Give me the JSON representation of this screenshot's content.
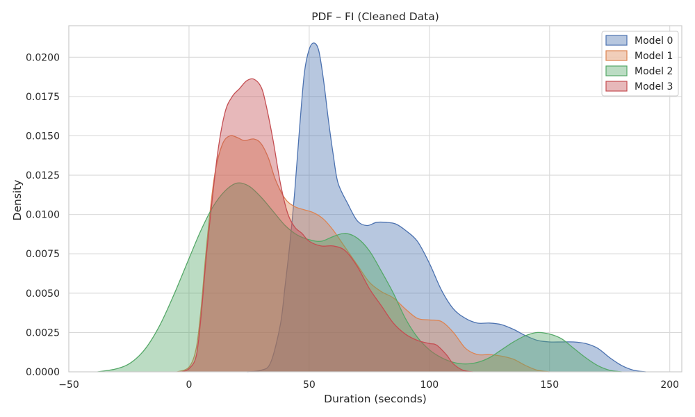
{
  "chart_data": {
    "type": "area",
    "title": "PDF – FI (Cleaned Data)",
    "xlabel": "Duration (seconds)",
    "ylabel": "Density",
    "xlim": [
      -50,
      205
    ],
    "ylim": [
      0,
      0.022
    ],
    "xticks": [
      -50,
      0,
      50,
      100,
      150,
      200
    ],
    "xtick_labels": [
      "−50",
      "0",
      "50",
      "100",
      "150",
      "200"
    ],
    "yticks": [
      0,
      0.0025,
      0.005,
      0.0075,
      0.01,
      0.0125,
      0.015,
      0.0175,
      0.02
    ],
    "ytick_labels": [
      "0.0000",
      "0.0025",
      "0.0050",
      "0.0075",
      "0.0100",
      "0.0125",
      "0.0150",
      "0.0175",
      "0.0200"
    ],
    "grid": true,
    "legend_position": "top-right",
    "series": [
      {
        "name": "Model 0",
        "color": "#4c72b0",
        "points": [
          [
            24,
            0
          ],
          [
            30,
            0.0001
          ],
          [
            34,
            0.0006
          ],
          [
            38,
            0.003
          ],
          [
            40,
            0.0055
          ],
          [
            42,
            0.0082
          ],
          [
            44,
            0.0115
          ],
          [
            46,
            0.0155
          ],
          [
            48,
            0.019
          ],
          [
            50,
            0.0205
          ],
          [
            52,
            0.0209
          ],
          [
            54,
            0.0204
          ],
          [
            56,
            0.0185
          ],
          [
            58,
            0.016
          ],
          [
            60,
            0.0138
          ],
          [
            62,
            0.012
          ],
          [
            66,
            0.0107
          ],
          [
            70,
            0.0096
          ],
          [
            74,
            0.0093
          ],
          [
            78,
            0.0095
          ],
          [
            82,
            0.0095
          ],
          [
            86,
            0.0094
          ],
          [
            90,
            0.009
          ],
          [
            95,
            0.0083
          ],
          [
            100,
            0.0069
          ],
          [
            105,
            0.0052
          ],
          [
            110,
            0.004
          ],
          [
            115,
            0.0034
          ],
          [
            120,
            0.0031
          ],
          [
            125,
            0.0031
          ],
          [
            130,
            0.003
          ],
          [
            135,
            0.0027
          ],
          [
            140,
            0.0023
          ],
          [
            145,
            0.002
          ],
          [
            150,
            0.0019
          ],
          [
            155,
            0.0019
          ],
          [
            160,
            0.0019
          ],
          [
            165,
            0.0018
          ],
          [
            170,
            0.0015
          ],
          [
            175,
            0.0009
          ],
          [
            180,
            0.0004
          ],
          [
            185,
            0.0001
          ],
          [
            190,
            0
          ]
        ]
      },
      {
        "name": "Model 1",
        "color": "#dd8452",
        "points": [
          [
            -5,
            0
          ],
          [
            0,
            0.0003
          ],
          [
            3,
            0.0015
          ],
          [
            5,
            0.004
          ],
          [
            7,
            0.0075
          ],
          [
            9,
            0.0105
          ],
          [
            11,
            0.0128
          ],
          [
            14,
            0.0145
          ],
          [
            17,
            0.015
          ],
          [
            20,
            0.0149
          ],
          [
            23,
            0.0147
          ],
          [
            27,
            0.0148
          ],
          [
            30,
            0.0145
          ],
          [
            33,
            0.0136
          ],
          [
            36,
            0.0122
          ],
          [
            40,
            0.011
          ],
          [
            44,
            0.0105
          ],
          [
            48,
            0.0103
          ],
          [
            52,
            0.0101
          ],
          [
            56,
            0.0097
          ],
          [
            60,
            0.009
          ],
          [
            65,
            0.0079
          ],
          [
            70,
            0.0068
          ],
          [
            75,
            0.0057
          ],
          [
            80,
            0.0051
          ],
          [
            85,
            0.0047
          ],
          [
            90,
            0.004
          ],
          [
            95,
            0.0034
          ],
          [
            100,
            0.0033
          ],
          [
            105,
            0.0032
          ],
          [
            110,
            0.0025
          ],
          [
            115,
            0.0015
          ],
          [
            120,
            0.0011
          ],
          [
            125,
            0.0011
          ],
          [
            130,
            0.001
          ],
          [
            135,
            0.0008
          ],
          [
            140,
            0.0004
          ],
          [
            145,
            0.0001
          ],
          [
            150,
            0
          ]
        ]
      },
      {
        "name": "Model 2",
        "color": "#55a868",
        "points": [
          [
            -38,
            0
          ],
          [
            -30,
            0.0002
          ],
          [
            -24,
            0.0006
          ],
          [
            -18,
            0.0015
          ],
          [
            -12,
            0.003
          ],
          [
            -6,
            0.005
          ],
          [
            0,
            0.0072
          ],
          [
            5,
            0.009
          ],
          [
            10,
            0.0105
          ],
          [
            15,
            0.0115
          ],
          [
            20,
            0.012
          ],
          [
            25,
            0.0118
          ],
          [
            30,
            0.0111
          ],
          [
            35,
            0.0102
          ],
          [
            40,
            0.0093
          ],
          [
            45,
            0.0087
          ],
          [
            50,
            0.0084
          ],
          [
            55,
            0.0083
          ],
          [
            60,
            0.0086
          ],
          [
            65,
            0.0088
          ],
          [
            70,
            0.0085
          ],
          [
            75,
            0.0077
          ],
          [
            80,
            0.0064
          ],
          [
            85,
            0.005
          ],
          [
            90,
            0.0034
          ],
          [
            95,
            0.0022
          ],
          [
            100,
            0.0014
          ],
          [
            105,
            0.0009
          ],
          [
            110,
            0.0006
          ],
          [
            115,
            0.0005
          ],
          [
            120,
            0.0006
          ],
          [
            125,
            0.0009
          ],
          [
            130,
            0.0014
          ],
          [
            135,
            0.0019
          ],
          [
            140,
            0.0023
          ],
          [
            145,
            0.0025
          ],
          [
            150,
            0.0024
          ],
          [
            155,
            0.0021
          ],
          [
            160,
            0.0015
          ],
          [
            165,
            0.0009
          ],
          [
            170,
            0.0004
          ],
          [
            175,
            0.0001
          ],
          [
            180,
            0
          ]
        ]
      },
      {
        "name": "Model 3",
        "color": "#c44e52",
        "points": [
          [
            -3,
            0
          ],
          [
            0,
            0.0002
          ],
          [
            3,
            0.001
          ],
          [
            5,
            0.0035
          ],
          [
            7,
            0.007
          ],
          [
            9,
            0.01
          ],
          [
            12,
            0.014
          ],
          [
            15,
            0.0165
          ],
          [
            18,
            0.0175
          ],
          [
            21,
            0.018
          ],
          [
            24,
            0.0185
          ],
          [
            27,
            0.0186
          ],
          [
            30,
            0.0181
          ],
          [
            32,
            0.017
          ],
          [
            35,
            0.0147
          ],
          [
            38,
            0.012
          ],
          [
            41,
            0.0101
          ],
          [
            44,
            0.0092
          ],
          [
            47,
            0.0088
          ],
          [
            50,
            0.0083
          ],
          [
            55,
            0.008
          ],
          [
            60,
            0.008
          ],
          [
            65,
            0.0077
          ],
          [
            70,
            0.0067
          ],
          [
            75,
            0.0053
          ],
          [
            80,
            0.0042
          ],
          [
            85,
            0.0031
          ],
          [
            90,
            0.0024
          ],
          [
            95,
            0.002
          ],
          [
            100,
            0.0018
          ],
          [
            103,
            0.0017
          ],
          [
            107,
            0.0011
          ],
          [
            110,
            0.0005
          ],
          [
            114,
            0.0001
          ],
          [
            118,
            0
          ]
        ]
      }
    ]
  }
}
